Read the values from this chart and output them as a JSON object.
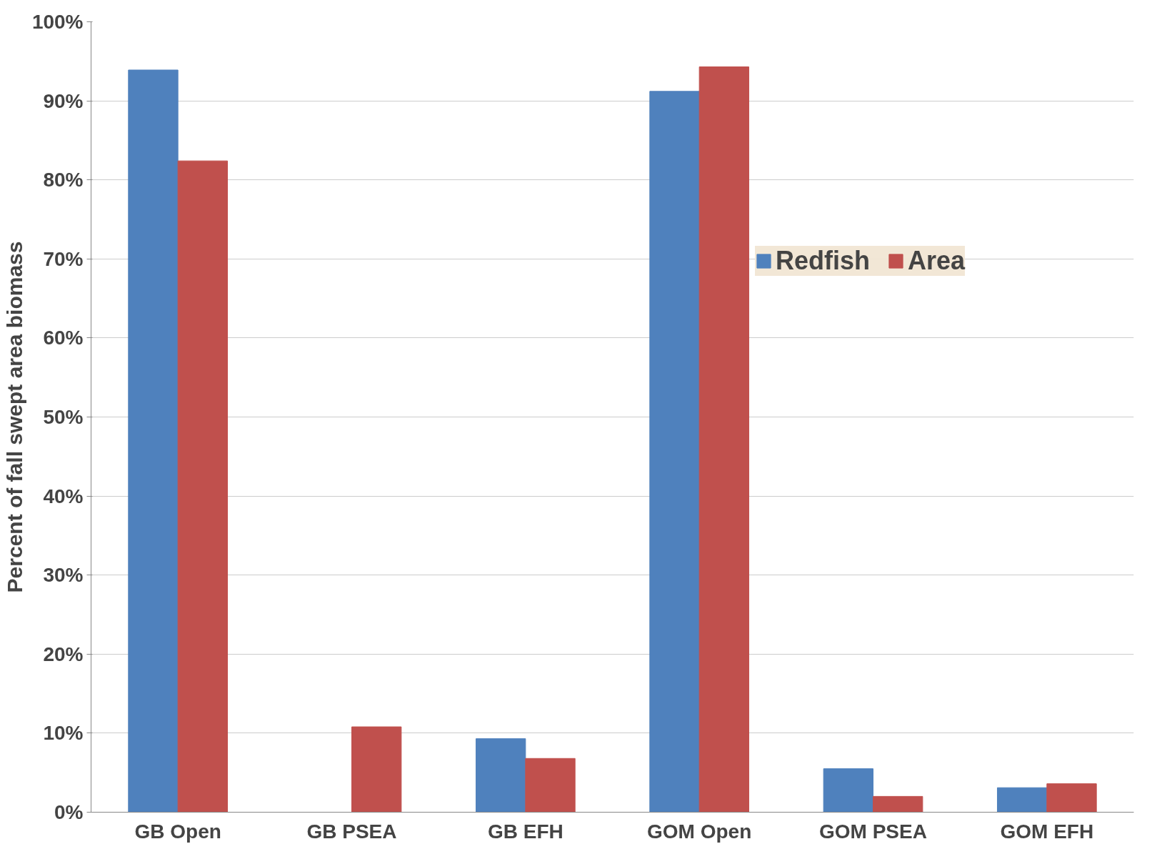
{
  "chart_data": {
    "type": "bar",
    "ylabel": "Percent of fall swept area biomass",
    "categories": [
      "GB Open",
      "GB PSEA",
      "GB EFH",
      "GOM Open",
      "GOM PSEA",
      "GOM EFH"
    ],
    "series": [
      {
        "name": "Redfish",
        "color": "#4f81bd",
        "values": [
          93.9,
          0,
          9.3,
          91.2,
          5.5,
          3.1
        ]
      },
      {
        "name": "Area",
        "color": "#c0504d",
        "values": [
          82.4,
          10.8,
          6.8,
          94.3,
          2.0,
          3.6
        ]
      }
    ],
    "ylim": [
      0,
      100
    ],
    "yticks": [
      {
        "value": 0,
        "label": "0%"
      },
      {
        "value": 10,
        "label": "10%"
      },
      {
        "value": 20,
        "label": "20%"
      },
      {
        "value": 30,
        "label": "30%"
      },
      {
        "value": 40,
        "label": "40%"
      },
      {
        "value": 50,
        "label": "50%"
      },
      {
        "value": 60,
        "label": "60%"
      },
      {
        "value": 70,
        "label": "70%"
      },
      {
        "value": 80,
        "label": "80%"
      },
      {
        "value": 90,
        "label": "90%"
      },
      {
        "value": 100,
        "label": "100%"
      }
    ],
    "grid": "y",
    "legend": "top right"
  }
}
